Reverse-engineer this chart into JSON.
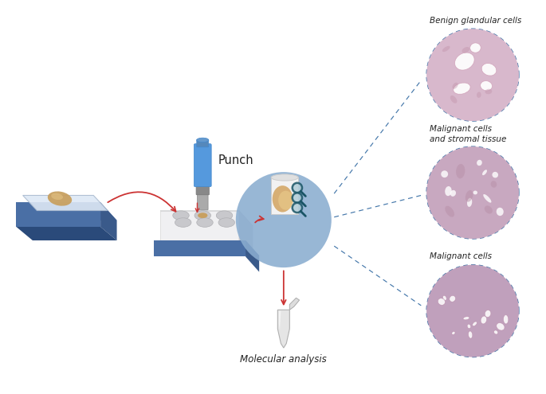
{
  "bg_color": "#ffffff",
  "fig_width": 6.85,
  "fig_height": 4.95,
  "dpi": 100,
  "labels": {
    "punch": "Punch",
    "molecular": "Molecular analysis",
    "benign": "Benign glandular cells",
    "malignant_stromal": "Malignant cells\nand stromal tissue",
    "malignant": "Malignant cells"
  },
  "colors": {
    "slide_blue_top": "#5b7db8",
    "slide_blue_front": "#4a6fa5",
    "slide_blue_dark": "#3a5a8a",
    "punch_blue_top": "#4488cc",
    "punch_blue_body": "#5599dd",
    "punch_gray": "#aaaaaa",
    "punch_gray_light": "#bbbbbb",
    "arrow_red": "#cc3333",
    "dashed_line": "#4477aa",
    "tissue_tan": "#c8a060",
    "tissue_light": "#ddb878",
    "oval_blue": "#8aadd0",
    "oval_blue_edge": "#7799bb",
    "tube_gray": "#cccccc",
    "tube_white": "#e8e8e8",
    "label_color": "#222222",
    "magnifier_teal": "#1a5566",
    "block_top": "#e0e2e8",
    "block_front": "#f0f0f2",
    "block_side": "#ccced4",
    "hole_fill": "#c8c8cc",
    "hole_shadow": "#b0b0b4",
    "glass_fill": "#dde8f5",
    "glass_edge": "#aabbd0",
    "cyl_top": "#e0e0e0",
    "cyl_body": "#f2f2f2",
    "cyl_edge": "#cccccc"
  }
}
